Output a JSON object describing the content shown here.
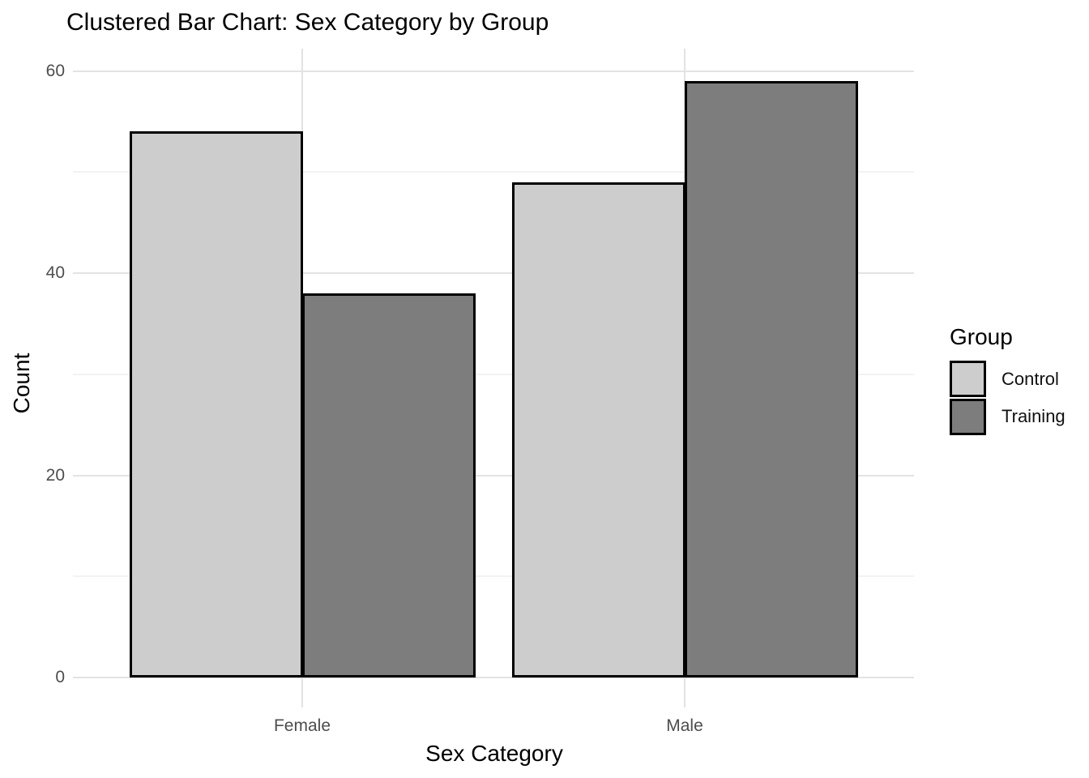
{
  "chart_data": {
    "type": "bar",
    "title": "Clustered Bar Chart: Sex Category by Group",
    "xlabel": "Sex Category",
    "ylabel": "Count",
    "categories": [
      "Female",
      "Male"
    ],
    "series": [
      {
        "name": "Control",
        "values": [
          54,
          49
        ],
        "color": "#cdcdcd"
      },
      {
        "name": "Training",
        "values": [
          38,
          59
        ],
        "color": "#7d7d7d"
      }
    ],
    "yticks": [
      0,
      20,
      40,
      60
    ],
    "ylim": [
      0,
      62
    ],
    "bar_border_color": "#000000",
    "grid": {
      "show": true,
      "major_color": "#e3e3e3",
      "minor_color": "#f2f2f2",
      "background": "#ffffff"
    },
    "legend": {
      "title": "Group",
      "position": "right"
    },
    "text_colors": {
      "title": "#000000",
      "axis_title": "#000000",
      "tick_labels": "#4d4d4d"
    }
  }
}
